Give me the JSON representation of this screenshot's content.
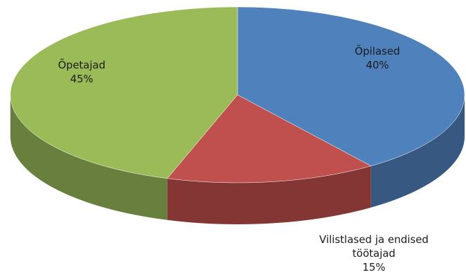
{
  "chart_data": {
    "type": "pie3d",
    "categories": [
      "Õpilased",
      "Vilistlased ja endised töötajad",
      "Õpetajad"
    ],
    "values": [
      40,
      15,
      45
    ],
    "value_labels": [
      "40%",
      "15%",
      "45%"
    ],
    "colors": [
      "#4f81bd",
      "#c0504d",
      "#9bbb59"
    ]
  }
}
